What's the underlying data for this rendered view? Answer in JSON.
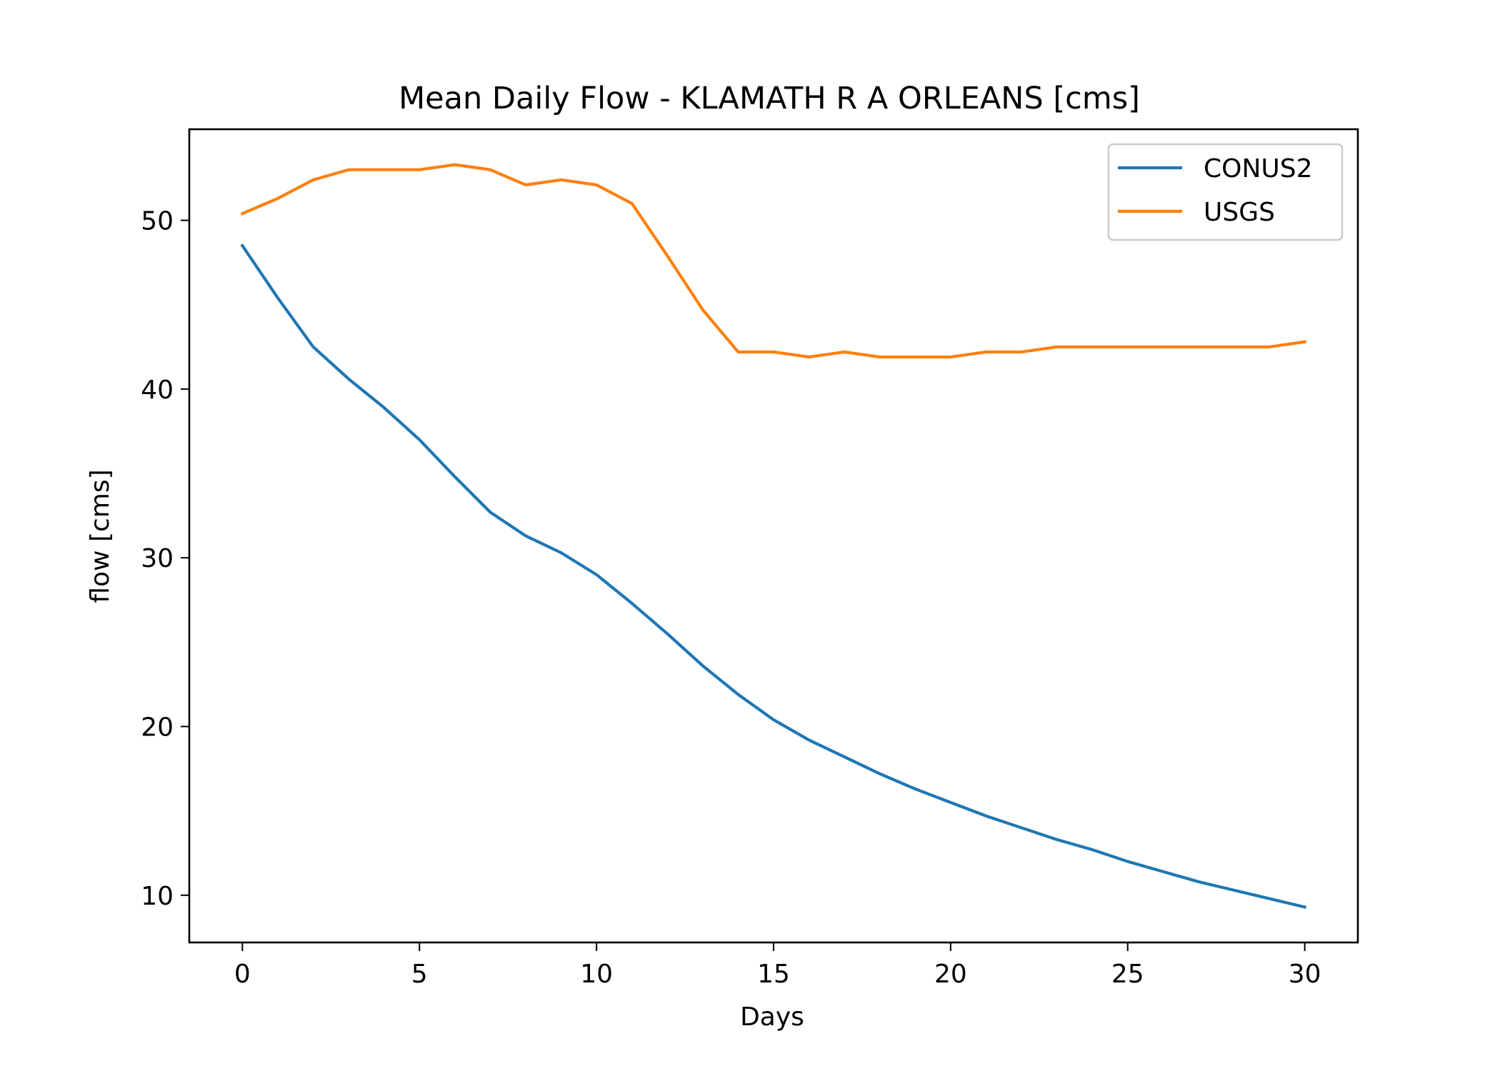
{
  "chart_data": {
    "type": "line",
    "title": "Mean Daily Flow - KLAMATH R A ORLEANS [cms]",
    "xlabel": "Days",
    "ylabel": "flow [cms]",
    "xlim": [
      -1.5,
      31.5
    ],
    "ylim": [
      7.2,
      55.4
    ],
    "xticks": [
      0,
      5,
      10,
      15,
      20,
      25,
      30
    ],
    "yticks": [
      10,
      20,
      30,
      40,
      50
    ],
    "grid": false,
    "legend_position": "top-right",
    "x": [
      0,
      1,
      2,
      3,
      4,
      5,
      6,
      7,
      8,
      9,
      10,
      11,
      12,
      13,
      14,
      15,
      16,
      17,
      18,
      19,
      20,
      21,
      22,
      23,
      24,
      25,
      26,
      27,
      28,
      29,
      30
    ],
    "series": [
      {
        "name": "CONUS2",
        "color": "#1f77b4",
        "values": [
          48.5,
          45.4,
          42.5,
          40.6,
          38.9,
          37.0,
          34.8,
          32.7,
          31.3,
          30.3,
          29.0,
          27.3,
          25.5,
          23.6,
          21.9,
          20.4,
          19.2,
          18.2,
          17.2,
          16.3,
          15.5,
          14.7,
          14.0,
          13.3,
          12.7,
          12.0,
          11.4,
          10.8,
          10.3,
          9.8,
          9.3
        ]
      },
      {
        "name": "USGS",
        "color": "#ff7f0e",
        "values": [
          50.4,
          51.3,
          52.4,
          53.0,
          53.0,
          53.0,
          53.3,
          53.0,
          52.1,
          52.4,
          52.1,
          51.0,
          47.9,
          44.7,
          42.2,
          42.2,
          41.9,
          42.2,
          41.9,
          41.9,
          41.9,
          42.2,
          42.2,
          42.5,
          42.5,
          42.5,
          42.5,
          42.5,
          42.5,
          42.5,
          42.8
        ]
      }
    ]
  }
}
